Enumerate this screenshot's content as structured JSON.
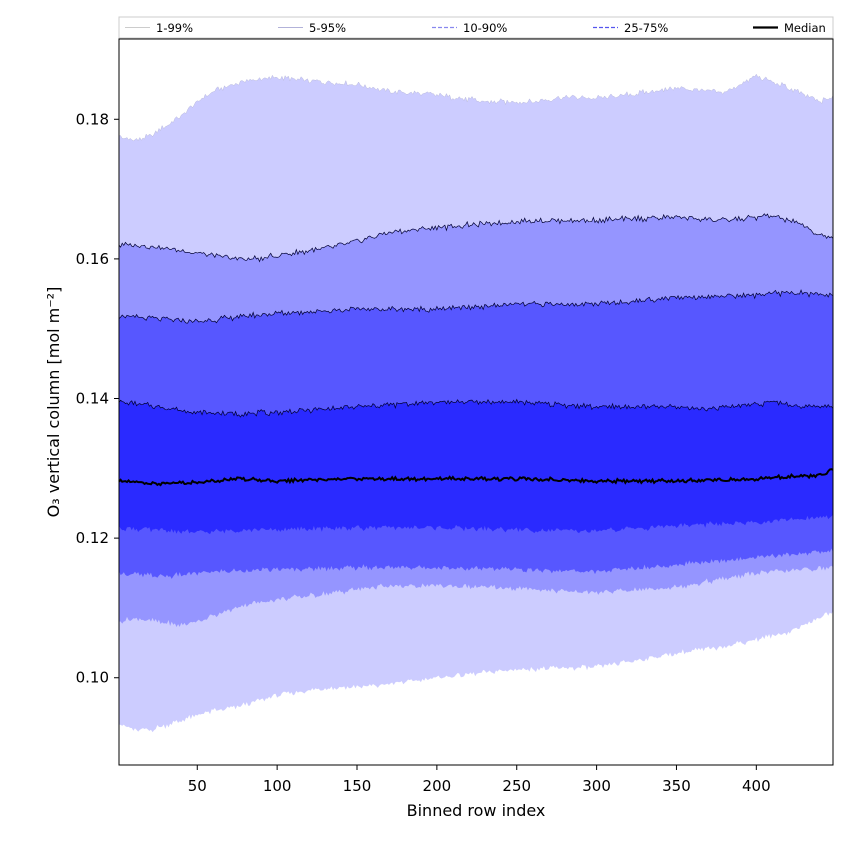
{
  "chart_data": {
    "type": "area",
    "title": "",
    "xlabel": "Binned row index",
    "ylabel": "O₃ vertical column [mol m⁻²]",
    "xlim": [
      1,
      448
    ],
    "ylim": [
      0.0875,
      0.1915
    ],
    "xticks": [
      50,
      100,
      150,
      200,
      250,
      300,
      350,
      400
    ],
    "yticks": [
      0.1,
      0.12,
      0.14,
      0.16,
      0.18
    ],
    "ytick_labels": [
      "0.10",
      "0.12",
      "0.14",
      "0.16",
      "0.18"
    ],
    "grid": false,
    "legend_position": "top",
    "bands": [
      {
        "name": "1-99%",
        "fill": "#ccccff",
        "line_color": "#bbbbdd",
        "lower": {
          "x": [
            1,
            10,
            20,
            35,
            55,
            75,
            100,
            130,
            160,
            200,
            250,
            300,
            350,
            380,
            420,
            448
          ],
          "y": [
            0.0935,
            0.0925,
            0.0925,
            0.0935,
            0.095,
            0.0958,
            0.0975,
            0.0985,
            0.0988,
            0.1,
            0.1012,
            0.1015,
            0.1035,
            0.1045,
            0.1065,
            0.1095
          ]
        },
        "upper": {
          "x": [
            1,
            10,
            20,
            30,
            40,
            50,
            60,
            70,
            80,
            100,
            120,
            150,
            170,
            200,
            230,
            260,
            280,
            300,
            320,
            350,
            380,
            400,
            420,
            440,
            448
          ],
          "y": [
            0.1775,
            0.177,
            0.1775,
            0.179,
            0.1805,
            0.1825,
            0.184,
            0.1848,
            0.1855,
            0.186,
            0.1855,
            0.185,
            0.184,
            0.1835,
            0.1825,
            0.1825,
            0.1832,
            0.183,
            0.1835,
            0.1845,
            0.1838,
            0.1862,
            0.1845,
            0.1825,
            0.1832
          ]
        }
      },
      {
        "name": "5-95%",
        "fill": "#9595ff",
        "line_color": "#000033",
        "lower": {
          "x": [
            1,
            10,
            20,
            40,
            60,
            80,
            100,
            130,
            160,
            200,
            250,
            300,
            350,
            400,
            448
          ],
          "y": [
            0.108,
            0.1085,
            0.1082,
            0.1075,
            0.1088,
            0.1105,
            0.1112,
            0.112,
            0.113,
            0.1132,
            0.1128,
            0.1122,
            0.113,
            0.115,
            0.1158
          ]
        },
        "upper": {
          "x": [
            1,
            10,
            20,
            40,
            60,
            75,
            90,
            100,
            130,
            150,
            170,
            200,
            230,
            260,
            300,
            350,
            380,
            410,
            430,
            440,
            448
          ],
          "y": [
            0.162,
            0.162,
            0.1618,
            0.1612,
            0.1605,
            0.16,
            0.16,
            0.1605,
            0.1615,
            0.1625,
            0.1638,
            0.1645,
            0.165,
            0.1655,
            0.1655,
            0.166,
            0.1655,
            0.1662,
            0.1648,
            0.1632,
            0.1632
          ]
        }
      },
      {
        "name": "10-90%",
        "fill": "#5757ff",
        "line_color": "#000033",
        "lower": {
          "x": [
            1,
            10,
            30,
            60,
            100,
            150,
            200,
            250,
            300,
            350,
            400,
            448
          ],
          "y": [
            0.115,
            0.1148,
            0.1145,
            0.1152,
            0.1155,
            0.1158,
            0.1158,
            0.1155,
            0.1152,
            0.1162,
            0.1172,
            0.1182
          ]
        },
        "upper": {
          "x": [
            1,
            20,
            50,
            80,
            100,
            150,
            200,
            250,
            300,
            350,
            400,
            420,
            448
          ],
          "y": [
            0.1518,
            0.1515,
            0.151,
            0.1518,
            0.1522,
            0.1528,
            0.1528,
            0.1535,
            0.1535,
            0.1545,
            0.1548,
            0.1552,
            0.1548
          ]
        }
      },
      {
        "name": "25-75%",
        "fill": "#2a2aff",
        "line_color": "#000033",
        "lower": {
          "x": [
            1,
            20,
            50,
            80,
            100,
            150,
            200,
            250,
            300,
            350,
            400,
            448
          ],
          "y": [
            0.1215,
            0.1212,
            0.1208,
            0.1212,
            0.1212,
            0.1215,
            0.1215,
            0.1212,
            0.121,
            0.1218,
            0.1222,
            0.1232
          ]
        },
        "upper": {
          "x": [
            1,
            20,
            50,
            75,
            100,
            150,
            200,
            250,
            300,
            350,
            370,
            410,
            430,
            448
          ],
          "y": [
            0.1395,
            0.139,
            0.138,
            0.1378,
            0.138,
            0.1388,
            0.1395,
            0.1395,
            0.1388,
            0.1388,
            0.1385,
            0.1395,
            0.1388,
            0.139
          ]
        }
      }
    ],
    "median": {
      "name": "Median",
      "color": "#000000",
      "x": [
        1,
        25,
        50,
        75,
        100,
        150,
        200,
        250,
        300,
        350,
        400,
        420,
        440,
        448
      ],
      "y": [
        0.1282,
        0.1278,
        0.128,
        0.1285,
        0.1282,
        0.1285,
        0.1285,
        0.1285,
        0.1282,
        0.1282,
        0.1285,
        0.1288,
        0.129,
        0.1298
      ]
    },
    "legend": [
      {
        "label": "1-99%",
        "style": "solid-thin",
        "color": "#bbbbbb"
      },
      {
        "label": "5-95%",
        "style": "solid-thin",
        "color": "#9999cc"
      },
      {
        "label": "10-90%",
        "style": "dashed",
        "color": "#8888ee"
      },
      {
        "label": "25-75%",
        "style": "dashed",
        "color": "#5555ee"
      },
      {
        "label": "Median",
        "style": "solid-thick",
        "color": "#000000"
      }
    ]
  }
}
